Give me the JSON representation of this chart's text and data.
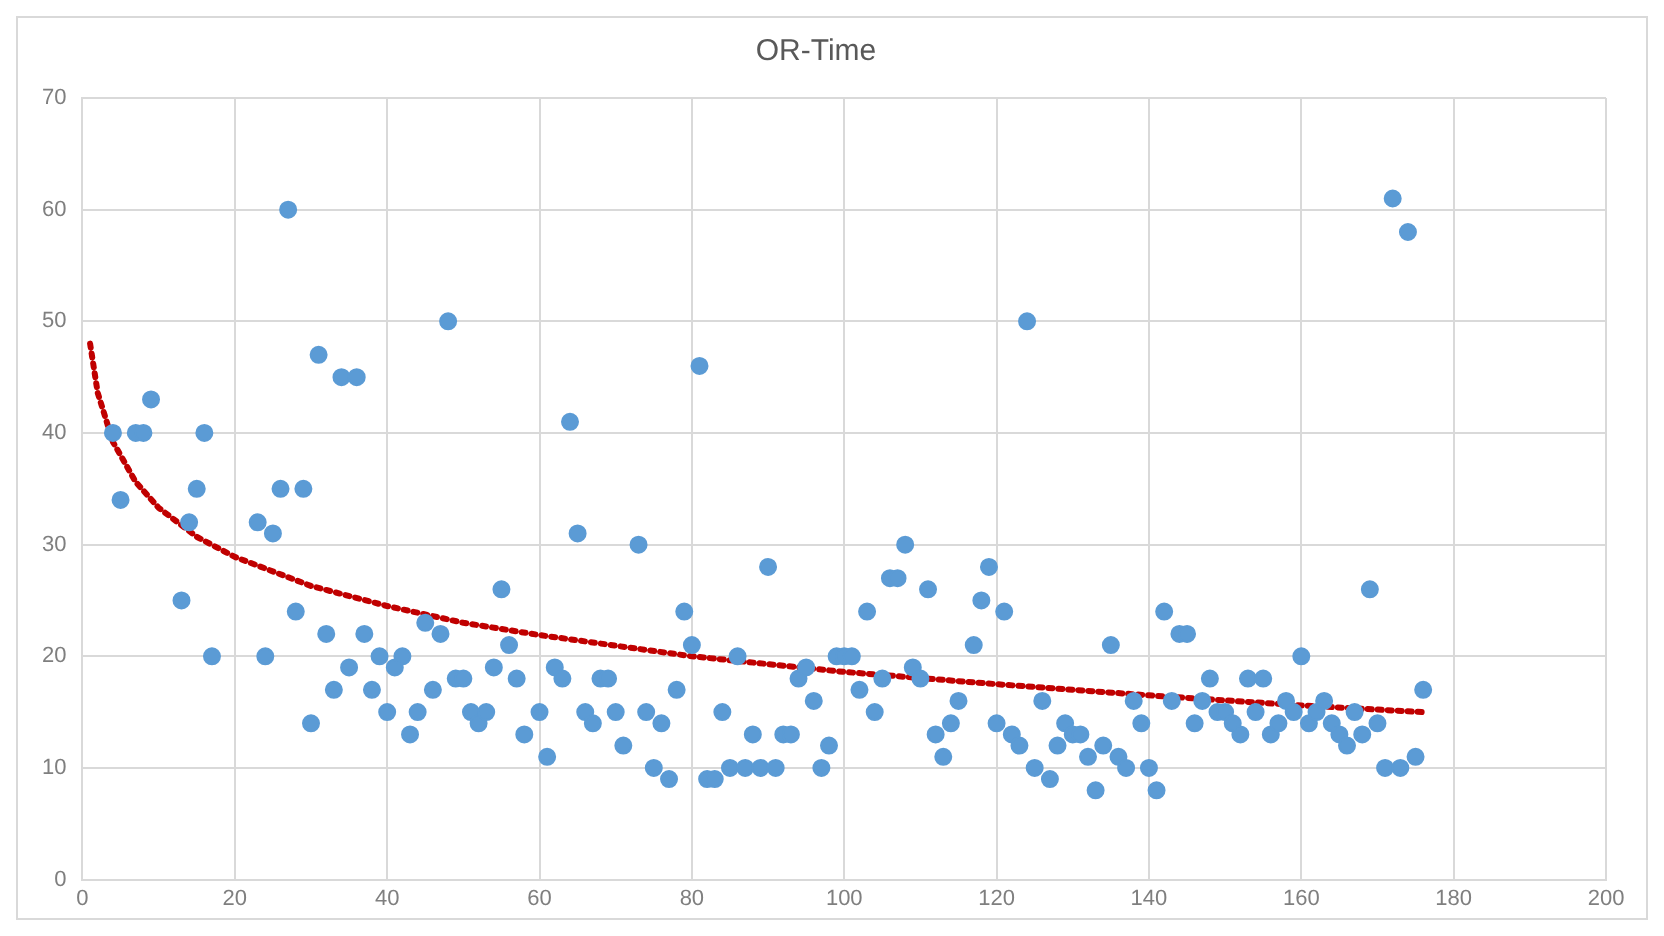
{
  "chart_data": {
    "type": "scatter",
    "title": "OR-Time",
    "xlim": [
      0,
      200
    ],
    "xticks": [
      0,
      20,
      40,
      60,
      80,
      100,
      120,
      140,
      160,
      180,
      200
    ],
    "ylim": [
      0,
      70
    ],
    "yticks": [
      0,
      10,
      20,
      30,
      40,
      50,
      60,
      70
    ],
    "grid": true,
    "legend": false,
    "series": [
      {
        "type": "scatter",
        "marker": "circle",
        "color": "#5b9bd5",
        "x": [
          4,
          5,
          7,
          8,
          9,
          13,
          14,
          15,
          16,
          17,
          23,
          24,
          25,
          26,
          27,
          28,
          29,
          30,
          31,
          32,
          33,
          34,
          35,
          36,
          37,
          38,
          39,
          40,
          41,
          42,
          43,
          44,
          45,
          46,
          47,
          48,
          49,
          50,
          51,
          52,
          53,
          54,
          55,
          56,
          57,
          58,
          60,
          61,
          62,
          63,
          64,
          65,
          66,
          67,
          68,
          69,
          70,
          71,
          73,
          74,
          75,
          76,
          77,
          78,
          79,
          80,
          81,
          82,
          83,
          84,
          85,
          86,
          87,
          88,
          89,
          90,
          91,
          92,
          93,
          94,
          95,
          96,
          97,
          98,
          99,
          100,
          101,
          102,
          103,
          104,
          105,
          106,
          107,
          108,
          109,
          110,
          111,
          112,
          113,
          114,
          115,
          117,
          118,
          119,
          120,
          121,
          122,
          123,
          124,
          125,
          126,
          127,
          128,
          129,
          130,
          131,
          132,
          133,
          134,
          135,
          136,
          137,
          138,
          139,
          140,
          141,
          142,
          143,
          144,
          145,
          146,
          147,
          148,
          149,
          150,
          151,
          152,
          153,
          154,
          155,
          156,
          157,
          158,
          159,
          160,
          161,
          162,
          163,
          164,
          165,
          166,
          167,
          168,
          169,
          170,
          171,
          172,
          173,
          174,
          175,
          176
        ],
        "values": [
          40,
          34,
          40,
          40,
          43,
          25,
          32,
          35,
          40,
          20,
          32,
          20,
          31,
          35,
          60,
          24,
          35,
          14,
          47,
          22,
          17,
          45,
          19,
          45,
          22,
          17,
          20,
          15,
          19,
          20,
          13,
          15,
          23,
          17,
          22,
          50,
          18,
          18,
          15,
          14,
          15,
          19,
          26,
          21,
          18,
          13,
          15,
          11,
          19,
          18,
          41,
          31,
          15,
          14,
          18,
          18,
          15,
          12,
          30,
          15,
          10,
          14,
          9,
          17,
          24,
          21,
          46,
          9,
          9,
          15,
          10,
          20,
          10,
          13,
          10,
          28,
          10,
          13,
          13,
          18,
          19,
          16,
          10,
          12,
          20,
          20,
          20,
          17,
          24,
          15,
          18,
          27,
          27,
          30,
          19,
          18,
          26,
          13,
          11,
          14,
          16,
          21,
          25,
          28,
          14,
          24,
          13,
          12,
          50,
          10,
          16,
          9,
          12,
          14,
          13,
          13,
          11,
          8,
          12,
          21,
          11,
          10,
          16,
          14,
          10,
          8,
          24,
          16,
          22,
          22,
          14,
          16,
          18,
          15,
          15,
          14,
          13,
          18,
          15,
          18,
          13,
          14,
          16,
          15,
          20,
          14,
          15,
          16,
          14,
          13,
          12,
          15,
          13,
          26,
          14,
          10,
          61,
          10,
          58,
          11,
          17
        ]
      },
      {
        "type": "line",
        "marker": "none",
        "line_style": "dotted",
        "color": "#c00000",
        "x": [
          1,
          2,
          4,
          7,
          10,
          15,
          20,
          30,
          40,
          50,
          60,
          80,
          100,
          120,
          140,
          160,
          176
        ],
        "values": [
          48,
          43.6,
          39.2,
          35.6,
          33.3,
          30.7,
          28.9,
          26.3,
          24.5,
          23,
          21.9,
          20,
          18.6,
          17.5,
          16.5,
          15.6,
          15
        ]
      }
    ]
  }
}
